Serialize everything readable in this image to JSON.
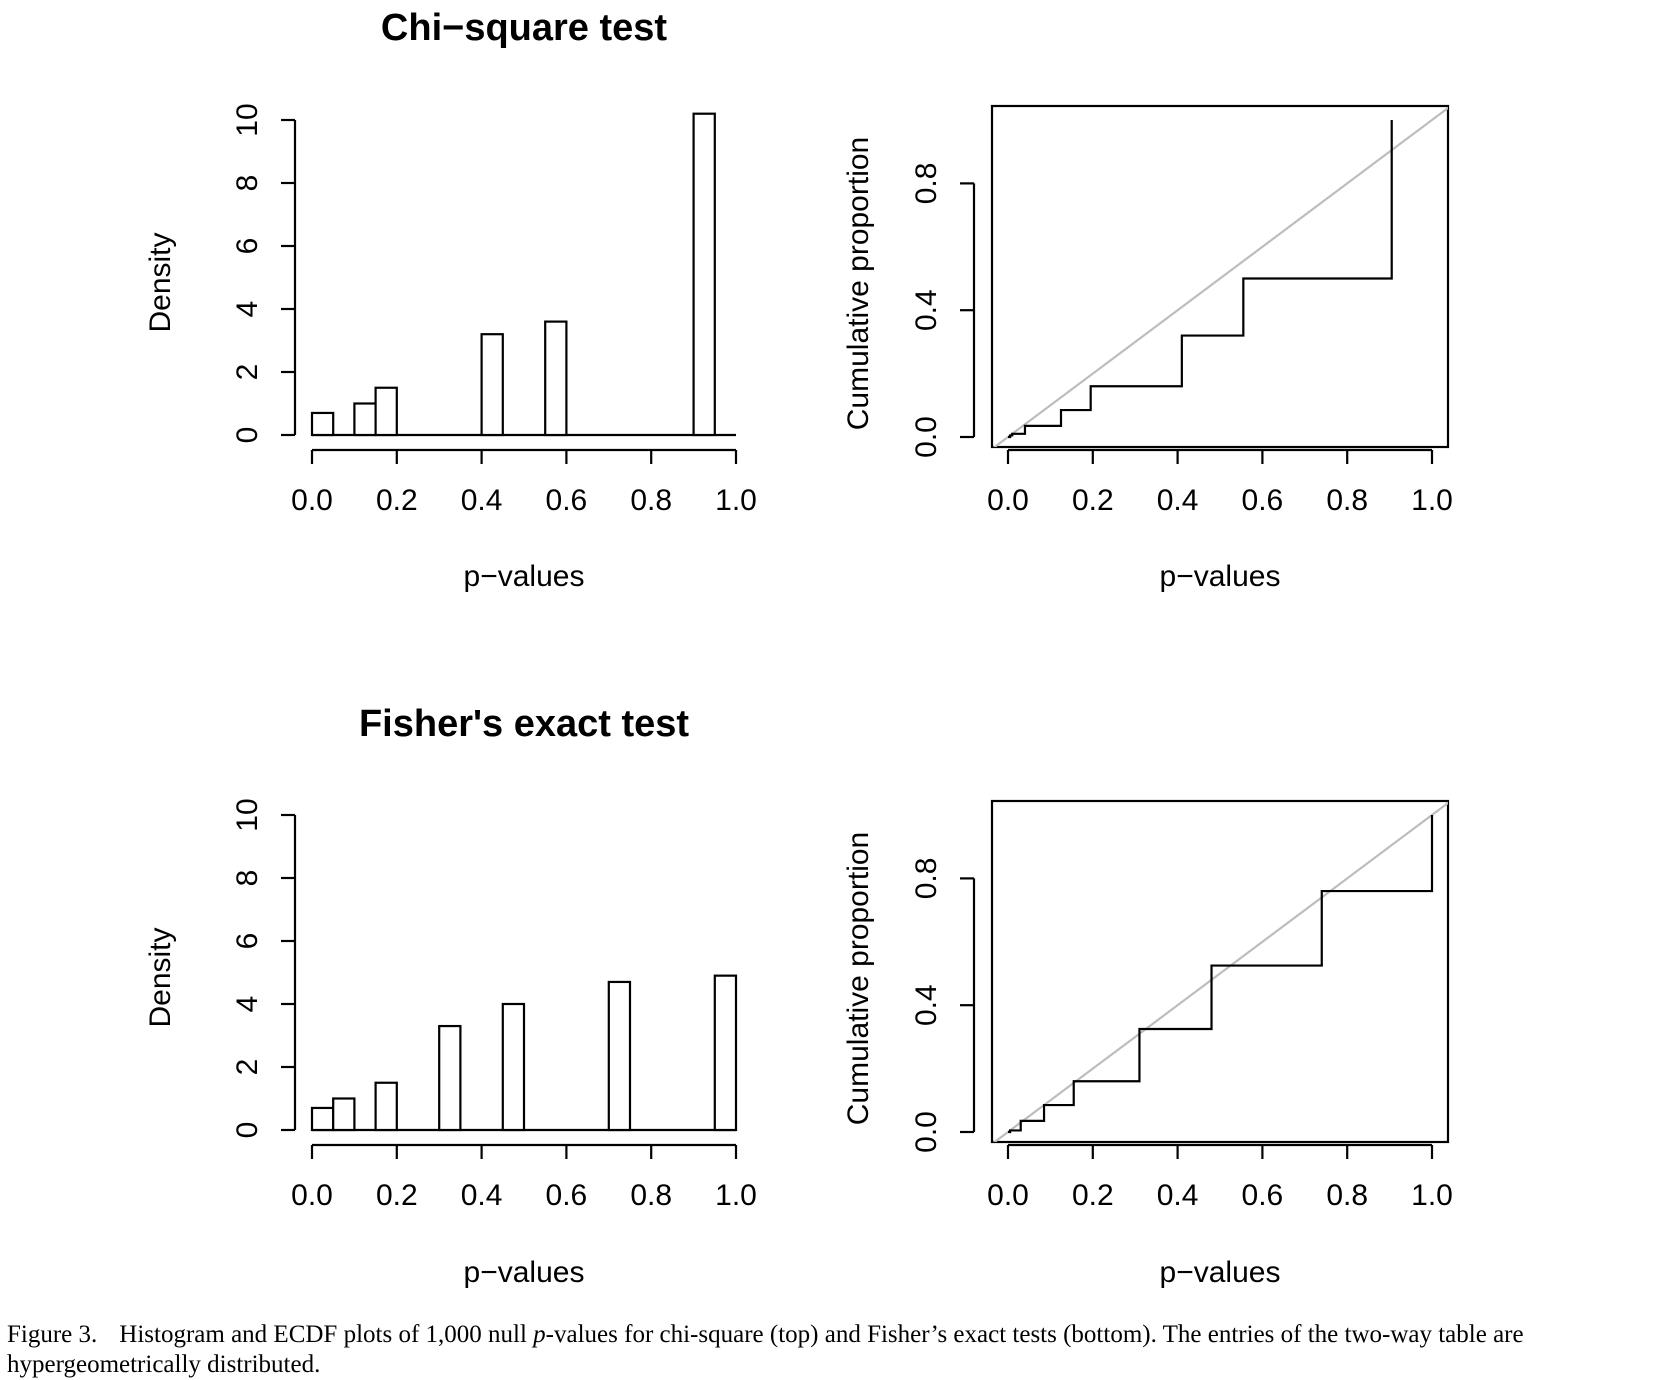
{
  "chart_data": [
    {
      "type": "bar",
      "title": "Chi−square test",
      "xlabel": "p−values",
      "ylabel": "Density",
      "xlim": [
        0,
        1
      ],
      "ylim": [
        0,
        10
      ],
      "xticks": [
        "0.0",
        "0.2",
        "0.4",
        "0.6",
        "0.8",
        "1.0"
      ],
      "yticks": [
        "0",
        "2",
        "4",
        "6",
        "8",
        "10"
      ],
      "bin_width": 0.05,
      "bins": [
        {
          "x0": 0.0,
          "x1": 0.05,
          "density": 0.7
        },
        {
          "x0": 0.1,
          "x1": 0.15,
          "density": 1.0
        },
        {
          "x0": 0.15,
          "x1": 0.2,
          "density": 1.5
        },
        {
          "x0": 0.4,
          "x1": 0.45,
          "density": 3.2
        },
        {
          "x0": 0.55,
          "x1": 0.6,
          "density": 3.6
        },
        {
          "x0": 0.9,
          "x1": 0.95,
          "density": 10.2
        }
      ]
    },
    {
      "type": "line",
      "xlabel": "p−values",
      "ylabel": "Cumulative proportion",
      "xlim": [
        0,
        1
      ],
      "ylim": [
        0,
        1
      ],
      "xticks": [
        "0.0",
        "0.2",
        "0.4",
        "0.6",
        "0.8",
        "1.0"
      ],
      "yticks": [
        "0.0",
        "0.4",
        "0.8"
      ],
      "reference_line": {
        "from": [
          0,
          0
        ],
        "to": [
          1,
          1
        ],
        "color": "#bdbdbd"
      },
      "steps": [
        {
          "x": 0.005,
          "y": 0.005
        },
        {
          "x": 0.01,
          "y": 0.01
        },
        {
          "x": 0.04,
          "y": 0.035
        },
        {
          "x": 0.125,
          "y": 0.085
        },
        {
          "x": 0.195,
          "y": 0.16
        },
        {
          "x": 0.41,
          "y": 0.32
        },
        {
          "x": 0.555,
          "y": 0.5
        },
        {
          "x": 0.905,
          "y": 1.0
        }
      ]
    },
    {
      "type": "bar",
      "title": "Fisher's exact test",
      "xlabel": "p−values",
      "ylabel": "Density",
      "xlim": [
        0,
        1
      ],
      "ylim": [
        0,
        10
      ],
      "xticks": [
        "0.0",
        "0.2",
        "0.4",
        "0.6",
        "0.8",
        "1.0"
      ],
      "yticks": [
        "0",
        "2",
        "4",
        "6",
        "8",
        "10"
      ],
      "bin_width": 0.05,
      "bins": [
        {
          "x0": 0.0,
          "x1": 0.05,
          "density": 0.7
        },
        {
          "x0": 0.05,
          "x1": 0.1,
          "density": 1.0
        },
        {
          "x0": 0.15,
          "x1": 0.2,
          "density": 1.5
        },
        {
          "x0": 0.3,
          "x1": 0.35,
          "density": 3.3
        },
        {
          "x0": 0.45,
          "x1": 0.5,
          "density": 4.0
        },
        {
          "x0": 0.7,
          "x1": 0.75,
          "density": 4.7
        },
        {
          "x0": 0.95,
          "x1": 1.0,
          "density": 4.9
        }
      ]
    },
    {
      "type": "line",
      "xlabel": "p−values",
      "ylabel": "Cumulative proportion",
      "xlim": [
        0,
        1
      ],
      "ylim": [
        0,
        1
      ],
      "xticks": [
        "0.0",
        "0.2",
        "0.4",
        "0.6",
        "0.8",
        "1.0"
      ],
      "yticks": [
        "0.0",
        "0.4",
        "0.8"
      ],
      "reference_line": {
        "from": [
          0,
          0
        ],
        "to": [
          1,
          1
        ],
        "color": "#bdbdbd"
      },
      "steps": [
        {
          "x": 0.005,
          "y": 0.005
        },
        {
          "x": 0.03,
          "y": 0.035
        },
        {
          "x": 0.085,
          "y": 0.085
        },
        {
          "x": 0.155,
          "y": 0.16
        },
        {
          "x": 0.31,
          "y": 0.325
        },
        {
          "x": 0.48,
          "y": 0.525
        },
        {
          "x": 0.74,
          "y": 0.76
        },
        {
          "x": 1.0,
          "y": 1.0
        }
      ]
    }
  ],
  "caption": {
    "lead": "Figure 3.",
    "part1": "Histogram and ECDF plots of 1,000 null ",
    "p": "p",
    "part2": "-values for chi-square (top) and Fisher’s exact tests (bottom). The entries of the two-way table are hypergeometrically distributed."
  }
}
